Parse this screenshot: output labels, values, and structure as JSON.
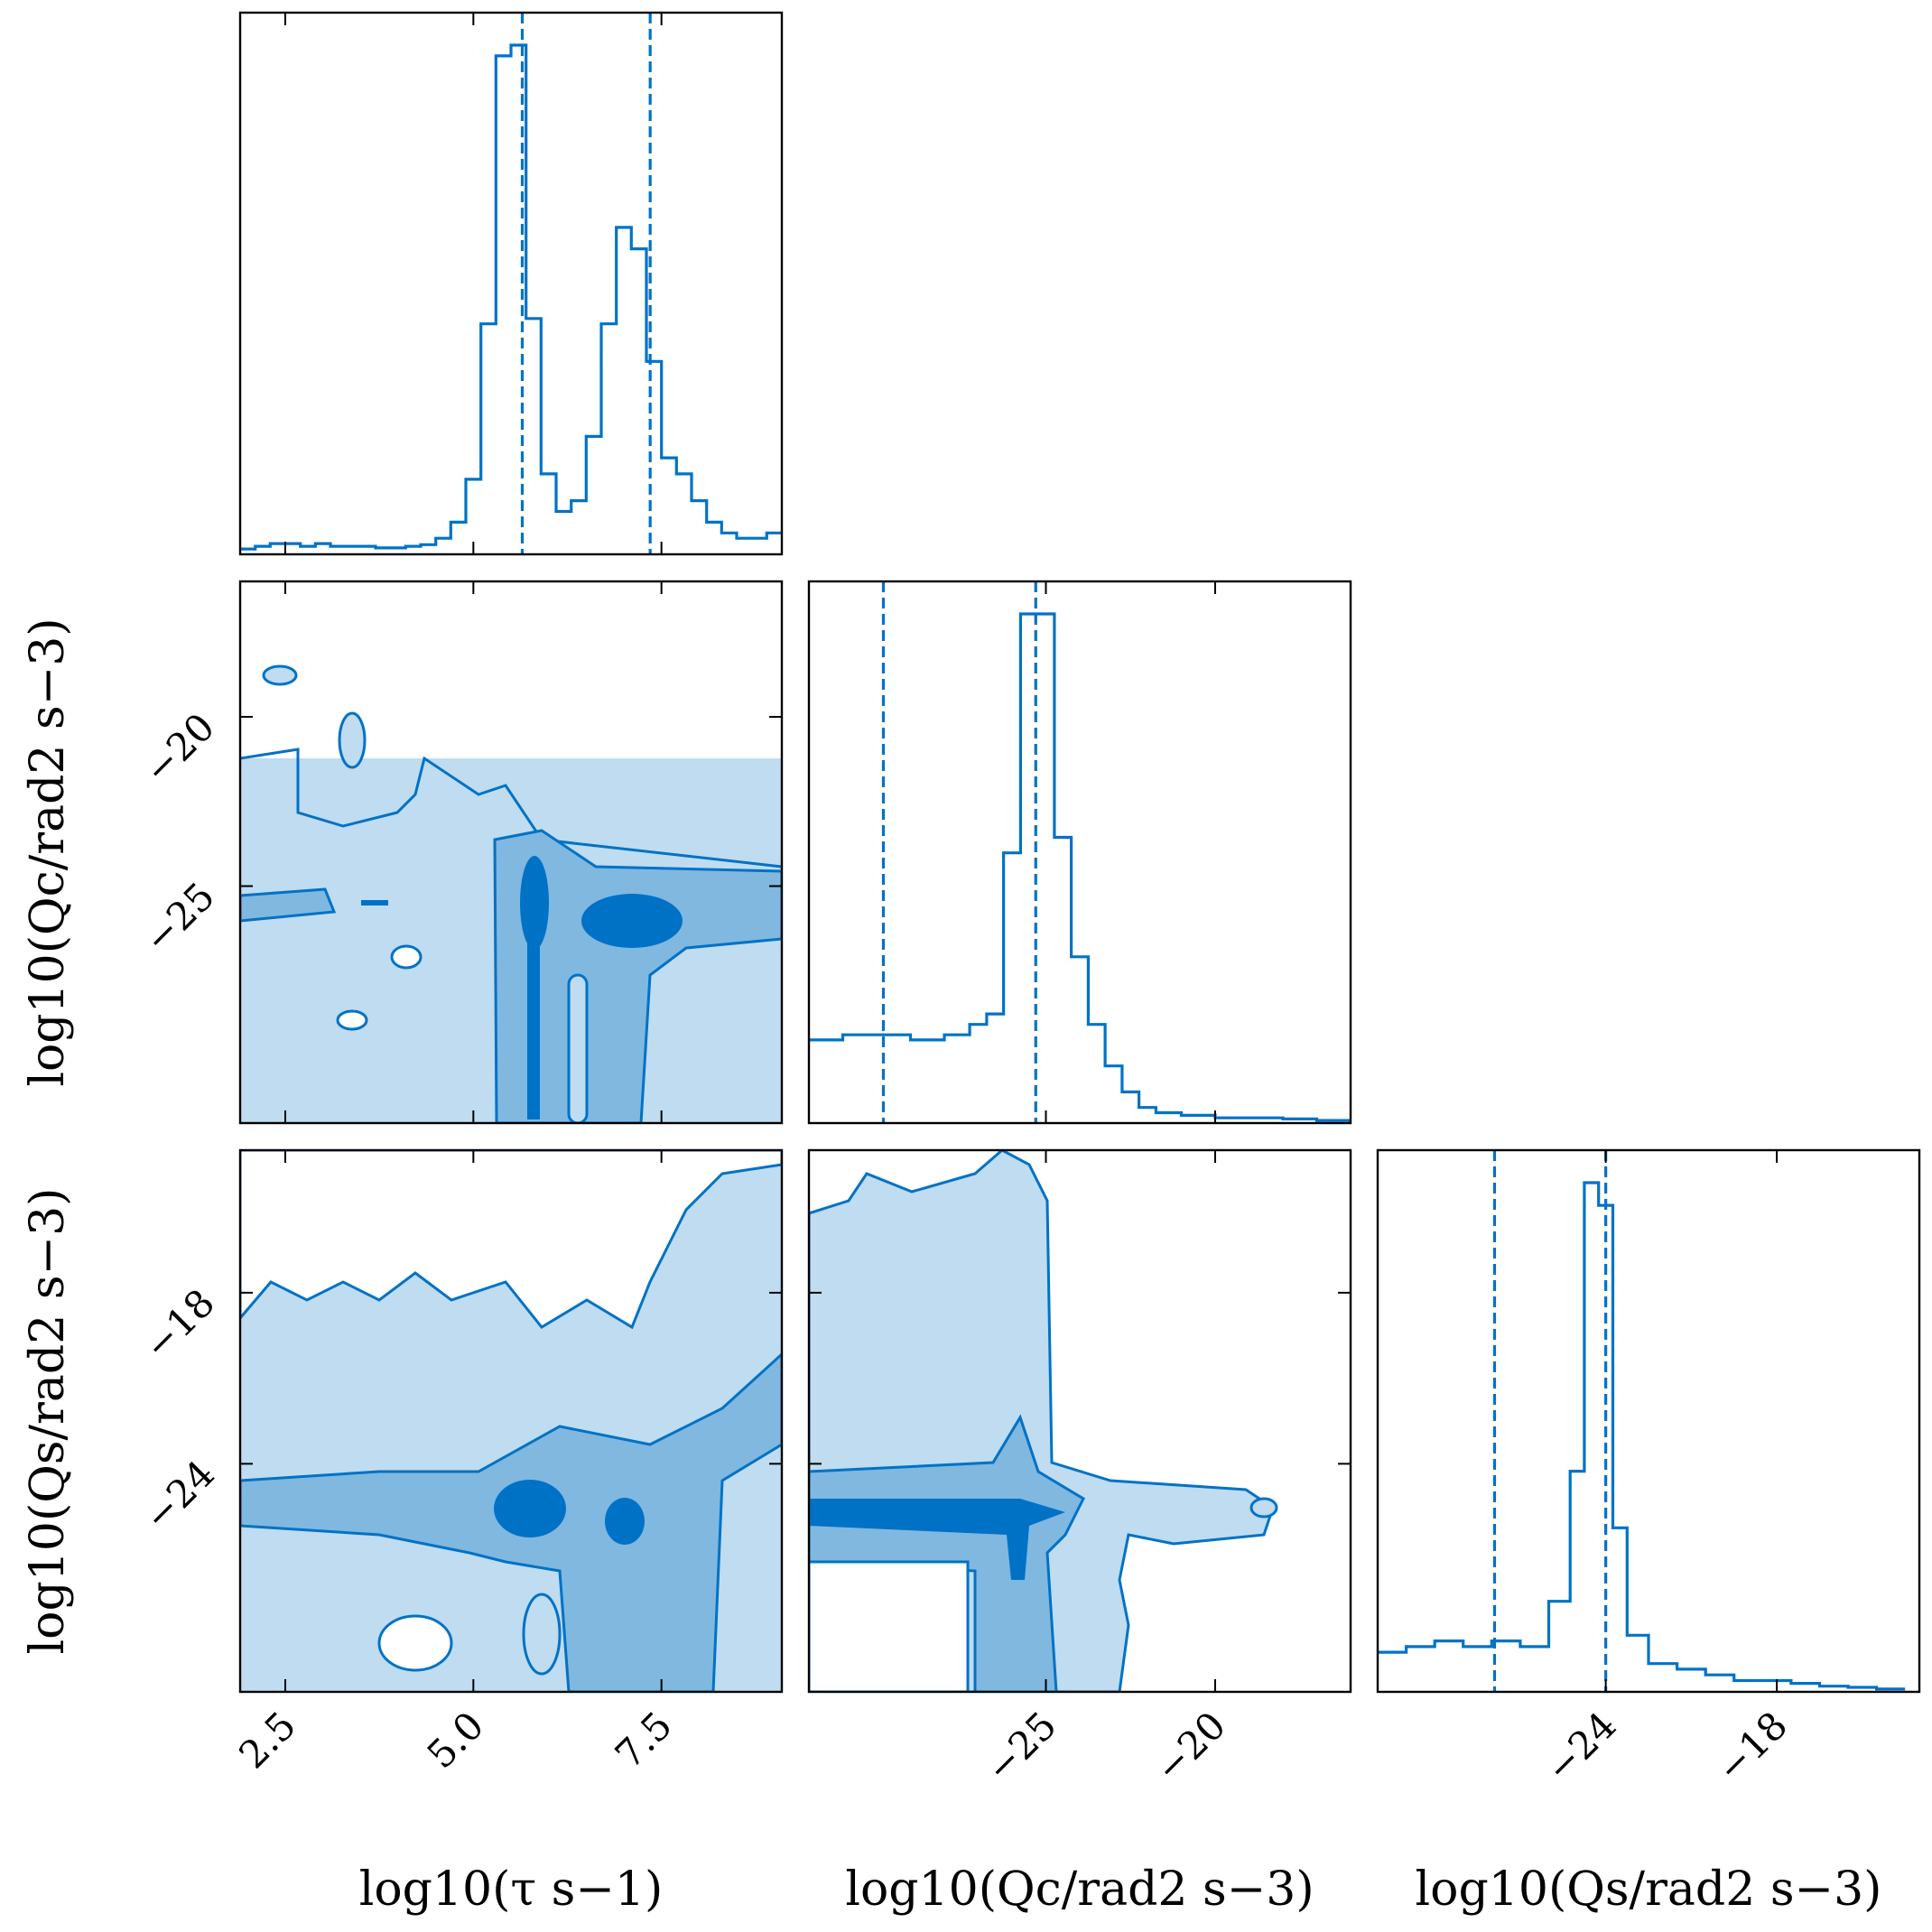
{
  "chart_data": {
    "type": "corner",
    "color": "#0072C6",
    "fill_colors": [
      "#BFDCF0",
      "#80B8E0",
      "#0072C6"
    ],
    "parameters": [
      {
        "label": "log10(τ s−1)",
        "range": [
          1.9,
          9.1
        ],
        "ticks": [
          2.5,
          5.0,
          7.5
        ],
        "tick_labels": [
          "2.5",
          "5.0",
          "7.5"
        ],
        "quantiles": [
          5.65,
          7.35
        ]
      },
      {
        "label": "log10(Qc/rad2 s−3)",
        "range": [
          -32,
          -16
        ],
        "ticks": [
          -25,
          -20
        ],
        "tick_labels": [
          "−25",
          "−20"
        ],
        "quantiles": [
          -29.8,
          -25.3
        ]
      },
      {
        "label": "log10(Qs/rad2 s−3)",
        "range": [
          -32,
          -13
        ],
        "ticks": [
          -24,
          -18
        ],
        "tick_labels": [
          "−24",
          "−18"
        ],
        "quantiles": [
          -27.9,
          -24.0
        ]
      }
    ],
    "histograms": [
      {
        "param": 0,
        "bin_centers": [
          2.0,
          2.2,
          2.4,
          2.6,
          2.8,
          3.0,
          3.2,
          3.4,
          3.6,
          3.8,
          4.0,
          4.2,
          4.4,
          4.6,
          4.8,
          5.0,
          5.2,
          5.4,
          5.6,
          5.8,
          6.0,
          6.2,
          6.4,
          6.6,
          6.8,
          7.0,
          7.2,
          7.4,
          7.6,
          7.8,
          8.0,
          8.2,
          8.4,
          8.6,
          8.8,
          9.0
        ],
        "values": [
          0.01,
          0.015,
          0.02,
          0.02,
          0.015,
          0.02,
          0.015,
          0.015,
          0.015,
          0.012,
          0.012,
          0.015,
          0.018,
          0.03,
          0.06,
          0.14,
          0.43,
          0.93,
          0.95,
          0.44,
          0.15,
          0.08,
          0.1,
          0.22,
          0.43,
          0.61,
          0.57,
          0.36,
          0.18,
          0.15,
          0.1,
          0.06,
          0.04,
          0.03,
          0.03,
          0.04
        ]
      },
      {
        "param": 1,
        "bin_centers": [
          -31.5,
          -30.5,
          -29.5,
          -28.5,
          -27.5,
          -27.0,
          -26.5,
          -26.0,
          -25.5,
          -25.0,
          -24.5,
          -24.0,
          -23.5,
          -23.0,
          -22.5,
          -22.0,
          -21.5,
          -20.5,
          -19.5,
          -18.5,
          -17.5,
          -16.5
        ],
        "values": [
          0.16,
          0.17,
          0.17,
          0.16,
          0.17,
          0.19,
          0.21,
          0.52,
          0.98,
          0.98,
          0.55,
          0.32,
          0.19,
          0.11,
          0.06,
          0.03,
          0.02,
          0.015,
          0.01,
          0.01,
          0.008,
          0.005
        ],
        "ylim": [
          0,
          1
        ]
      },
      {
        "param": 2,
        "bin_centers": [
          -31.5,
          -30.5,
          -29.5,
          -28.5,
          -27.5,
          -26.5,
          -25.5,
          -25.0,
          -24.5,
          -24.0,
          -23.5,
          -23.0,
          -22.0,
          -21.0,
          -20.0,
          -19.0,
          -18.0,
          -17.0,
          -16.0,
          -15.0,
          -14.0
        ],
        "values": [
          0.07,
          0.08,
          0.09,
          0.08,
          0.09,
          0.08,
          0.16,
          0.39,
          0.9,
          0.86,
          0.29,
          0.1,
          0.05,
          0.04,
          0.03,
          0.02,
          0.02,
          0.015,
          0.01,
          0.008,
          0.005
        ]
      }
    ],
    "contour_panels": [
      {
        "x_param": 0,
        "y_param": 1,
        "peaks": [
          {
            "x": 5.7,
            "y": -24.5
          },
          {
            "x": 7.1,
            "y": -24.5
          }
        ],
        "levels": [
          "outer",
          "middle",
          "inner"
        ]
      },
      {
        "x_param": 0,
        "y_param": 2,
        "peaks": [
          {
            "x": 5.7,
            "y": -24.3
          },
          {
            "x": 7.0,
            "y": -24.3
          }
        ],
        "levels": [
          "outer",
          "middle",
          "inner"
        ]
      },
      {
        "x_param": 1,
        "y_param": 2,
        "peaks": [
          {
            "x": -25.5,
            "y": -24.5
          }
        ],
        "levels": [
          "outer",
          "middle",
          "inner"
        ]
      }
    ]
  }
}
